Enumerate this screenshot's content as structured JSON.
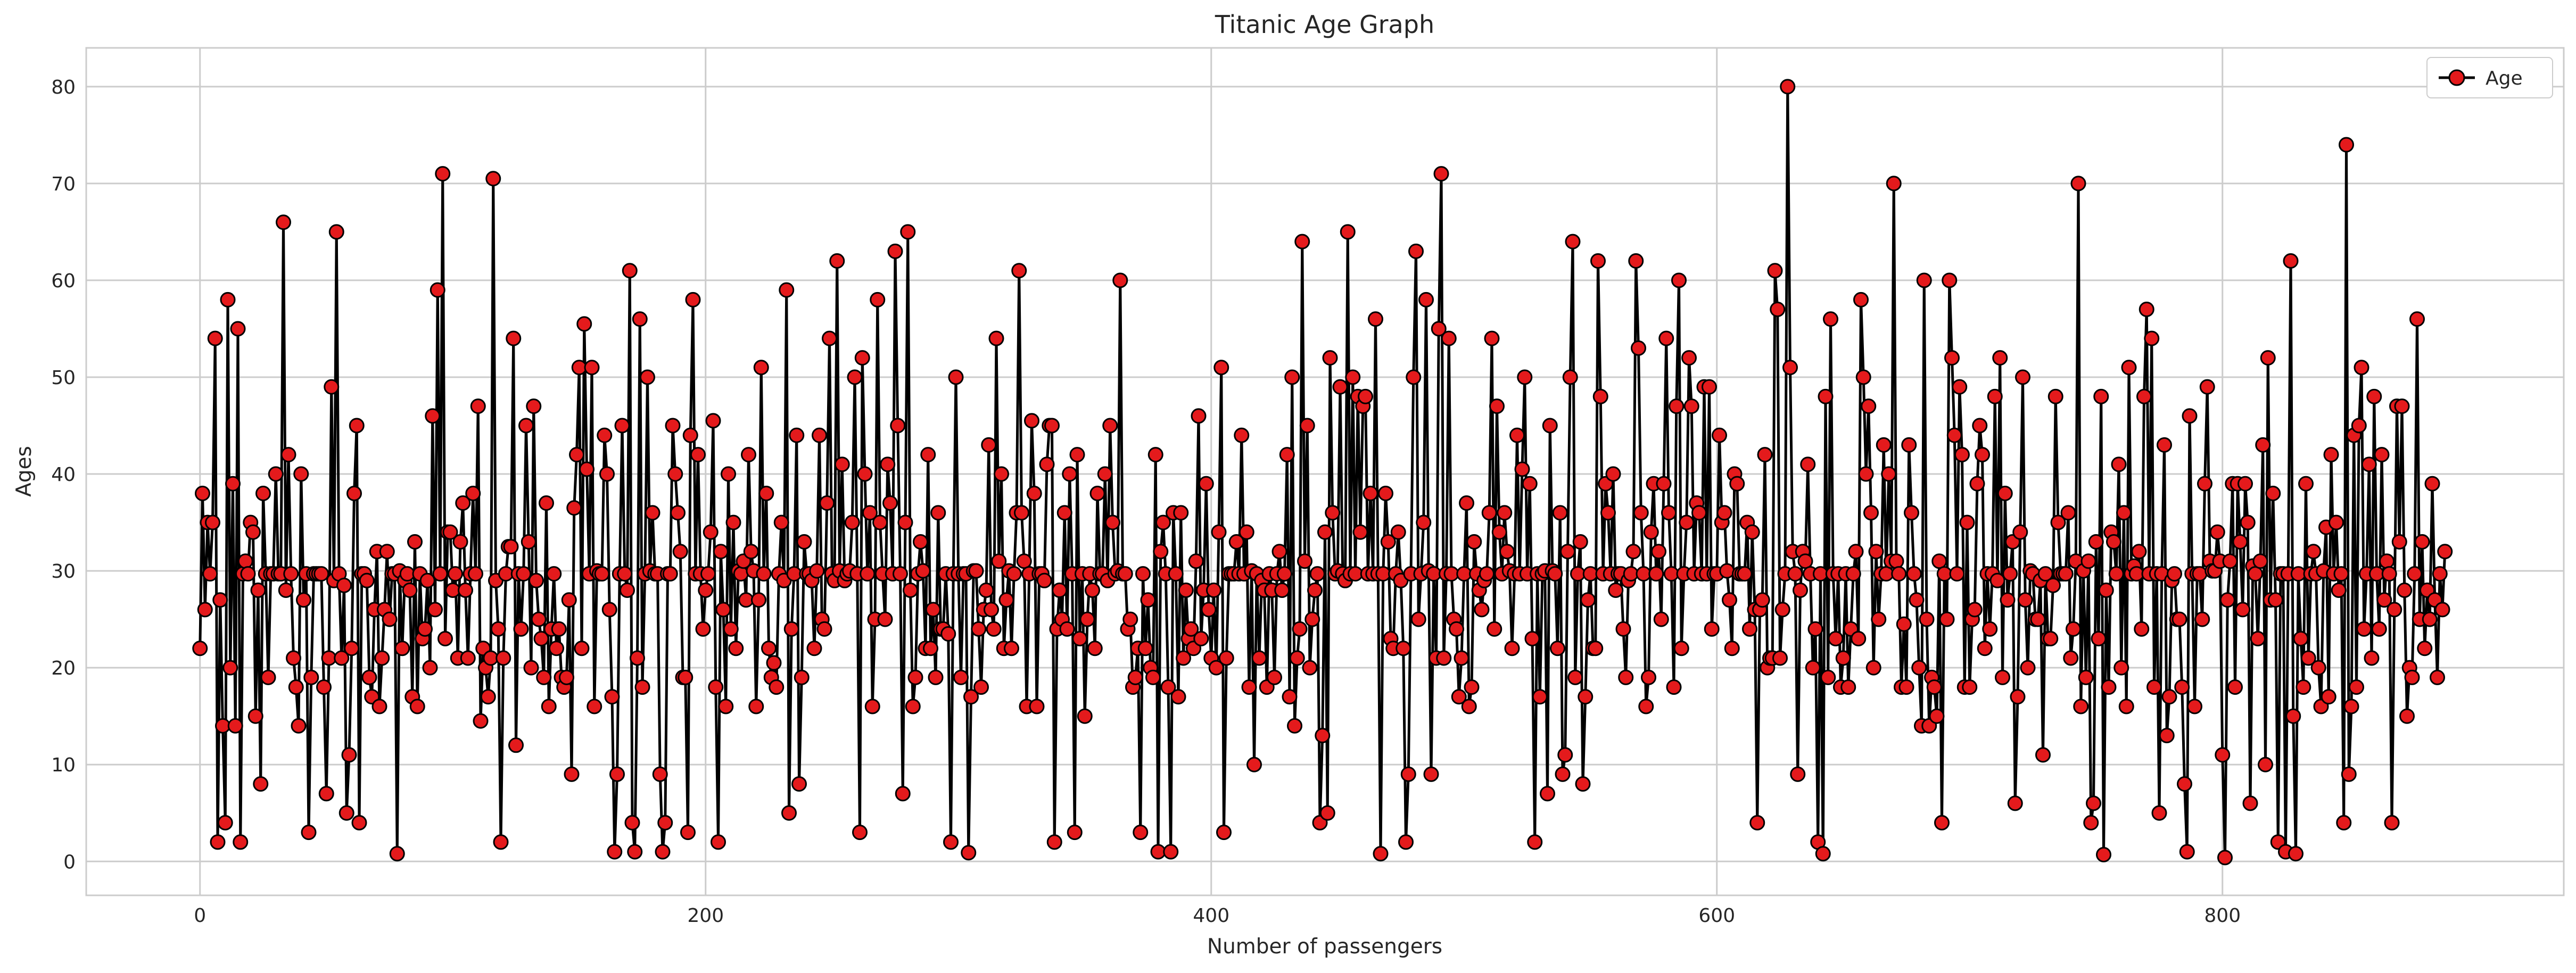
{
  "chart_data": {
    "type": "line",
    "title": "Titanic Age Graph",
    "xlabel": "Number of passengers",
    "ylabel": "Ages",
    "xlim": [
      -45,
      935
    ],
    "ylim": [
      -3.5,
      84
    ],
    "xticks": [
      0,
      200,
      400,
      600,
      800
    ],
    "yticks": [
      0,
      10,
      20,
      30,
      40,
      50,
      60,
      70,
      80
    ],
    "grid": true,
    "legend_position": "top-right",
    "series": [
      {
        "name": "Age",
        "line_color": "#000000",
        "marker_face": "#e41a1c",
        "marker_edge": "#000000",
        "x_start": 0,
        "x_step": 1,
        "values": [
          22,
          38,
          26,
          35,
          29.7,
          35,
          54,
          2,
          27,
          14,
          4,
          58,
          20,
          39,
          14,
          55,
          2,
          29.7,
          31,
          29.7,
          35,
          34,
          15,
          28,
          8,
          38,
          29.7,
          19,
          29.7,
          29.7,
          40,
          29.7,
          29.7,
          66,
          28,
          42,
          29.7,
          21,
          18,
          14,
          40,
          27,
          29.7,
          3,
          19,
          29.7,
          29.7,
          29.7,
          29.7,
          18,
          7,
          21,
          49,
          29,
          65,
          29.7,
          21,
          28.5,
          5,
          11,
          22,
          38,
          45,
          4,
          29.7,
          29.7,
          29,
          19,
          17,
          26,
          32,
          16,
          21,
          26,
          32,
          25,
          29.7,
          29.7,
          0.8,
          30,
          22,
          29,
          29.7,
          28,
          17,
          33,
          16,
          29.7,
          23,
          24,
          29,
          20,
          46,
          26,
          59,
          29.7,
          71,
          23,
          34,
          34,
          28,
          29.7,
          21,
          33,
          37,
          28,
          21,
          29.7,
          38,
          29.7,
          47,
          14.5,
          22,
          20,
          17,
          21,
          70.5,
          29,
          24,
          2,
          21,
          29.7,
          32.5,
          32.5,
          54,
          12,
          29.7,
          24,
          29.7,
          45,
          33,
          20,
          47,
          29,
          25,
          23,
          19,
          37,
          16,
          24,
          29.7,
          22,
          24,
          19,
          18,
          19,
          27,
          9,
          36.5,
          42,
          51,
          22,
          55.5,
          40.5,
          29.7,
          51,
          16,
          30,
          29.7,
          29.7,
          44,
          40,
          26,
          17,
          1,
          9,
          29.7,
          45,
          29.7,
          28,
          61,
          4,
          1,
          21,
          56,
          18,
          29.7,
          50,
          30,
          36,
          29.7,
          29.7,
          9,
          1,
          4,
          29.7,
          29.7,
          45,
          40,
          36,
          32,
          19,
          19,
          3,
          44,
          58,
          29.7,
          42,
          29.7,
          24,
          28,
          29.7,
          34,
          45.5,
          18,
          2,
          32,
          26,
          16,
          40,
          24,
          35,
          22,
          30,
          29.7,
          31,
          27,
          42,
          32,
          30,
          16,
          27,
          51,
          29.7,
          38,
          22,
          19,
          20.5,
          18,
          29.7,
          35,
          29,
          59,
          5,
          24,
          29.7,
          44,
          8,
          19,
          33,
          29.7,
          29.7,
          29,
          22,
          30,
          44,
          25,
          24,
          37,
          54,
          29.7,
          29,
          62,
          30,
          41,
          29,
          29.7,
          30,
          35,
          50,
          29.7,
          3,
          52,
          40,
          29.7,
          36,
          16,
          25,
          58,
          35,
          29.7,
          25,
          41,
          37,
          29.7,
          63,
          45,
          29.7,
          7,
          35,
          65,
          28,
          16,
          19,
          29.7,
          33,
          30,
          22,
          42,
          22,
          26,
          19,
          36,
          24,
          24,
          29.7,
          23.5,
          2,
          29.7,
          50,
          29.7,
          19,
          29.7,
          29.7,
          0.9,
          17,
          30,
          30,
          24,
          18,
          26,
          28,
          43,
          26,
          24,
          54,
          31,
          40,
          22,
          27,
          30,
          22,
          29.7,
          36,
          61,
          36,
          31,
          16,
          29.7,
          45.5,
          38,
          16,
          29.7,
          29.7,
          29,
          41,
          45,
          45,
          2,
          24,
          28,
          25,
          36,
          24,
          40,
          29.7,
          3,
          42,
          23,
          29.7,
          15,
          25,
          29.7,
          28,
          22,
          38,
          29.7,
          29.7,
          40,
          29,
          45,
          35,
          29.7,
          30,
          60,
          29.7,
          29.7,
          24,
          25,
          18,
          19,
          22,
          3,
          29.7,
          22,
          27,
          20,
          19,
          42,
          1,
          32,
          35,
          29.7,
          18,
          1,
          36,
          29.7,
          17,
          36,
          21,
          28,
          23,
          24,
          22,
          31,
          46,
          23,
          28,
          39,
          26,
          21,
          28,
          20,
          34,
          51,
          3,
          21,
          29.7,
          29.7,
          29.7,
          33,
          29.7,
          44,
          29.7,
          34,
          18,
          30,
          10,
          29.7,
          21,
          29,
          28,
          18,
          29.7,
          28,
          19,
          29.7,
          32,
          28,
          29.7,
          42,
          17,
          50,
          14,
          21,
          24,
          64,
          31,
          45,
          20,
          25,
          28,
          29.7,
          4,
          13,
          34,
          5,
          52,
          36,
          29.7,
          30,
          49,
          29.7,
          29,
          65,
          29.7,
          50,
          29.7,
          48,
          34,
          47,
          48,
          29.7,
          38,
          29.7,
          56,
          29.7,
          0.8,
          29.7,
          38,
          33,
          23,
          22,
          29.7,
          34,
          29,
          22,
          2,
          9,
          29.7,
          50,
          63,
          25,
          29.7,
          35,
          58,
          30,
          9,
          29.7,
          21,
          55,
          71,
          21,
          29.7,
          54,
          29.7,
          25,
          24,
          17,
          21,
          29.7,
          37,
          16,
          18,
          33,
          29.7,
          28,
          26,
          29,
          29.7,
          36,
          54,
          24,
          47,
          34,
          29.7,
          36,
          32,
          30,
          22,
          29.7,
          44,
          29.7,
          40.5,
          50,
          29.7,
          39,
          23,
          2,
          29.7,
          17,
          29.7,
          30,
          7,
          45,
          30,
          29.7,
          22,
          36,
          9,
          11,
          32,
          50,
          64,
          19,
          29.7,
          33,
          8,
          17,
          27,
          29.7,
          22,
          22,
          62,
          48,
          29.7,
          39,
          36,
          29.7,
          40,
          28,
          29.7,
          29.7,
          24,
          19,
          29,
          29.7,
          32,
          62,
          53,
          36,
          29.7,
          16,
          19,
          34,
          39,
          29.7,
          32,
          25,
          39,
          54,
          36,
          29.7,
          18,
          47,
          60,
          22,
          29.7,
          35,
          52,
          47,
          29.7,
          37,
          36,
          29.7,
          49,
          29.7,
          49,
          24,
          29.7,
          29.7,
          44,
          35,
          36,
          30,
          27,
          22,
          40,
          39,
          29.7,
          29.7,
          29.7,
          35,
          24,
          34,
          26,
          4,
          26,
          27,
          42,
          20,
          21,
          21,
          61,
          57,
          21,
          26,
          29.7,
          80,
          51,
          32,
          29.7,
          9,
          28,
          32,
          31,
          41,
          29.7,
          20,
          24,
          2,
          29.7,
          0.8,
          48,
          19,
          56,
          29.7,
          23,
          29.7,
          18,
          21,
          29.7,
          18,
          24,
          29.7,
          32,
          23,
          58,
          50,
          40,
          47,
          36,
          20,
          32,
          25,
          29.7,
          43,
          29.7,
          40,
          31,
          70,
          31,
          29.7,
          18,
          24.5,
          18,
          43,
          36,
          29.7,
          27,
          20,
          14,
          60,
          25,
          14,
          19,
          18,
          15,
          31,
          4,
          29.7,
          25,
          60,
          52,
          44,
          29.7,
          49,
          42,
          18,
          35,
          18,
          25,
          26,
          39,
          45,
          42,
          22,
          29.7,
          24,
          29.7,
          48,
          29,
          52,
          19,
          38,
          27,
          29.7,
          33,
          6,
          17,
          34,
          50,
          27,
          20,
          30,
          29.7,
          25,
          25,
          29,
          11,
          29.7,
          23,
          23,
          28.5,
          48,
          35,
          29.7,
          29.7,
          29.7,
          36,
          21,
          24,
          31,
          70,
          16,
          30,
          19,
          31,
          4,
          6,
          33,
          23,
          48,
          0.7,
          28,
          18,
          34,
          33,
          29.7,
          41,
          20,
          36,
          16,
          51,
          29.7,
          30.5,
          29.7,
          32,
          24,
          48,
          57,
          29.7,
          54,
          18,
          29.7,
          5,
          29.7,
          43,
          13,
          17,
          29,
          29.7,
          25,
          25,
          18,
          8,
          1,
          46,
          29.7,
          16,
          29.7,
          29.7,
          25,
          39,
          49,
          31,
          30,
          30,
          34,
          31,
          11,
          0.4,
          27,
          31,
          39,
          18,
          39,
          33,
          26,
          39,
          35,
          6,
          30.5,
          29.7,
          23,
          31,
          43,
          10,
          52,
          27,
          38,
          27,
          2,
          29.7,
          29.7,
          1,
          29.7,
          62,
          15,
          0.8,
          29.7,
          23,
          18,
          39,
          21,
          29.7,
          32,
          29.7,
          20,
          16,
          30,
          34.5,
          17,
          42,
          29.7,
          35,
          28,
          29.7,
          4,
          74,
          9,
          16,
          44,
          18,
          45,
          51,
          24,
          29.7,
          41,
          21,
          48,
          29.7,
          24,
          42,
          27,
          31,
          29.7,
          4,
          26,
          47,
          33,
          47,
          28,
          15,
          20,
          19,
          29.7,
          56,
          25,
          33,
          22,
          28,
          25,
          39,
          27,
          19,
          29.7,
          26,
          32
        ]
      }
    ]
  }
}
